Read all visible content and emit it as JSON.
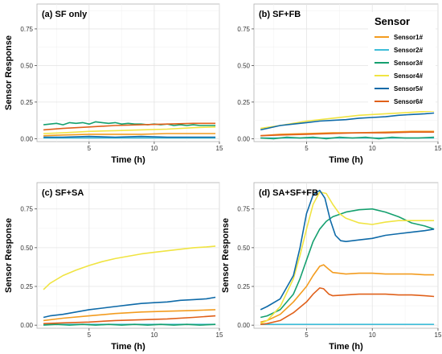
{
  "chart_data": {
    "type": "line",
    "legend": {
      "title": "Sensor",
      "entries": [
        {
          "name": "Sensor1#",
          "color": "#f39c1f"
        },
        {
          "name": "Sensor2#",
          "color": "#3fbdd8"
        },
        {
          "name": "Sensor3#",
          "color": "#15a06f"
        },
        {
          "name": "Sensor4#",
          "color": "#f0e442"
        },
        {
          "name": "Sensor5#",
          "color": "#0e6aa8"
        },
        {
          "name": "Sensor6#",
          "color": "#e0601a"
        }
      ]
    },
    "xlim": [
      1,
      15
    ],
    "ylim": [
      -0.02,
      0.92
    ],
    "xticks": [
      5,
      10,
      15
    ],
    "yticks": [
      0.0,
      0.25,
      0.5,
      0.75
    ],
    "ytick_labels": [
      "0.00",
      "0.25",
      "0.50",
      "0.75"
    ],
    "panels": [
      {
        "title": "(a) SF only",
        "xlabel": "Time (h)",
        "ylabel": "Sensor Response",
        "series": [
          {
            "name": "Sensor1#",
            "x": [
              1.5,
              3,
              5,
              7,
              9,
              11,
              13,
              14.7
            ],
            "y": [
              0.02,
              0.025,
              0.03,
              0.03,
              0.03,
              0.035,
              0.035,
              0.035
            ]
          },
          {
            "name": "Sensor2#",
            "x": [
              1.5,
              3,
              5,
              7,
              9,
              11,
              13,
              14.7
            ],
            "y": [
              0.005,
              0.005,
              0.005,
              0.005,
              0.005,
              0.005,
              0.005,
              0.005
            ]
          },
          {
            "name": "Sensor3#",
            "x": [
              1.5,
              2,
              2.5,
              3,
              3.5,
              4,
              4.5,
              5,
              5.5,
              6,
              6.5,
              7,
              7.5,
              8,
              8.5,
              9,
              9.5,
              10,
              10.5,
              11,
              11.5,
              12,
              12.5,
              13,
              13.5,
              14,
              14.7
            ],
            "y": [
              0.095,
              0.1,
              0.105,
              0.095,
              0.11,
              0.105,
              0.11,
              0.1,
              0.115,
              0.11,
              0.105,
              0.11,
              0.1,
              0.105,
              0.1,
              0.1,
              0.095,
              0.1,
              0.095,
              0.1,
              0.09,
              0.095,
              0.09,
              0.095,
              0.09,
              0.09,
              0.09
            ]
          },
          {
            "name": "Sensor4#",
            "x": [
              1.5,
              3,
              5,
              7,
              9,
              11,
              13,
              14.7
            ],
            "y": [
              0.035,
              0.04,
              0.05,
              0.055,
              0.06,
              0.065,
              0.075,
              0.08
            ]
          },
          {
            "name": "Sensor5#",
            "x": [
              1.5,
              3,
              5,
              7,
              9,
              11,
              13,
              14.7
            ],
            "y": [
              0.01,
              0.01,
              0.015,
              0.01,
              0.015,
              0.01,
              0.01,
              0.01
            ]
          },
          {
            "name": "Sensor6#",
            "x": [
              1.5,
              3,
              5,
              7,
              9,
              11,
              13,
              14.7
            ],
            "y": [
              0.06,
              0.07,
              0.08,
              0.09,
              0.095,
              0.1,
              0.105,
              0.105
            ]
          }
        ]
      },
      {
        "title": "(b) SF+FB",
        "xlabel": "Time (h)",
        "ylabel": "",
        "series": [
          {
            "name": "Sensor1#",
            "x": [
              1.5,
              3,
              5,
              7,
              9,
              11,
              13,
              14.7
            ],
            "y": [
              0.02,
              0.03,
              0.035,
              0.04,
              0.04,
              0.045,
              0.05,
              0.05
            ]
          },
          {
            "name": "Sensor2#",
            "x": [
              1.5,
              3,
              5,
              7,
              9,
              11,
              13,
              14.7
            ],
            "y": [
              0.005,
              0.005,
              0.005,
              0.005,
              0.005,
              0.005,
              0.005,
              0.005
            ]
          },
          {
            "name": "Sensor3#",
            "x": [
              1.5,
              2.5,
              3.5,
              4.5,
              5.5,
              6.5,
              7.5,
              8.5,
              9.5,
              10.5,
              11.5,
              12.5,
              13.5,
              14.7
            ],
            "y": [
              0.005,
              0.0,
              0.01,
              0.005,
              0.01,
              0.0,
              0.01,
              0.005,
              0.01,
              0.0,
              0.01,
              0.005,
              0.005,
              0.01
            ]
          },
          {
            "name": "Sensor4#",
            "x": [
              1.5,
              3,
              5,
              7,
              9,
              11,
              13,
              14.7
            ],
            "y": [
              0.07,
              0.09,
              0.12,
              0.14,
              0.16,
              0.17,
              0.18,
              0.19
            ]
          },
          {
            "name": "Sensor5#",
            "x": [
              1.5,
              2,
              3,
              4,
              5,
              6,
              7,
              8,
              9,
              10,
              11,
              12,
              13,
              14,
              14.7
            ],
            "y": [
              0.06,
              0.07,
              0.09,
              0.1,
              0.11,
              0.12,
              0.125,
              0.13,
              0.14,
              0.145,
              0.15,
              0.16,
              0.165,
              0.17,
              0.175
            ]
          },
          {
            "name": "Sensor6#",
            "x": [
              1.5,
              3,
              5,
              7,
              9,
              11,
              13,
              14.7
            ],
            "y": [
              0.02,
              0.025,
              0.03,
              0.035,
              0.04,
              0.04,
              0.045,
              0.045
            ]
          }
        ]
      },
      {
        "title": "(c) SF+SA",
        "xlabel": "Time (h)",
        "ylabel": "Sensor Response",
        "series": [
          {
            "name": "Sensor1#",
            "x": [
              1.5,
              3,
              5,
              7,
              9,
              11,
              13,
              14.7
            ],
            "y": [
              0.03,
              0.045,
              0.06,
              0.075,
              0.085,
              0.09,
              0.095,
              0.1
            ]
          },
          {
            "name": "Sensor2#",
            "x": [
              1.5,
              3,
              5,
              7,
              9,
              11,
              13,
              14.7
            ],
            "y": [
              0.005,
              0.005,
              0.005,
              0.005,
              0.005,
              0.005,
              0.005,
              0.005
            ]
          },
          {
            "name": "Sensor3#",
            "x": [
              1.5,
              2.5,
              3.5,
              4.5,
              5.5,
              6.5,
              7.5,
              8.5,
              9.5,
              10.5,
              11.5,
              12.5,
              13.5,
              14.7
            ],
            "y": [
              0.0,
              0.005,
              0.0,
              0.005,
              0.0,
              0.005,
              0.0,
              0.005,
              0.0,
              0.005,
              0.0,
              0.005,
              0.0,
              0.005
            ]
          },
          {
            "name": "Sensor4#",
            "x": [
              1.5,
              2,
              3,
              4,
              5,
              6,
              7,
              8,
              9,
              10,
              11,
              12,
              13,
              14,
              14.7
            ],
            "y": [
              0.23,
              0.27,
              0.32,
              0.355,
              0.385,
              0.41,
              0.43,
              0.445,
              0.46,
              0.47,
              0.48,
              0.49,
              0.5,
              0.505,
              0.51
            ]
          },
          {
            "name": "Sensor5#",
            "x": [
              1.5,
              2,
              3,
              4,
              5,
              6,
              7,
              8,
              9,
              10,
              11,
              12,
              13,
              14,
              14.7
            ],
            "y": [
              0.05,
              0.06,
              0.07,
              0.085,
              0.1,
              0.11,
              0.12,
              0.13,
              0.14,
              0.145,
              0.15,
              0.16,
              0.165,
              0.17,
              0.18
            ]
          },
          {
            "name": "Sensor6#",
            "x": [
              1.5,
              3,
              5,
              7,
              9,
              11,
              13,
              14.7
            ],
            "y": [
              0.01,
              0.015,
              0.02,
              0.03,
              0.035,
              0.04,
              0.05,
              0.06
            ]
          }
        ]
      },
      {
        "title": "(d) SA+SF+FB",
        "xlabel": "Time (h)",
        "ylabel": "Sensor Response",
        "series": [
          {
            "name": "Sensor1#",
            "x": [
              1.5,
              2,
              3,
              4,
              5,
              5.5,
              6,
              6.3,
              6.7,
              7,
              8,
              9,
              10,
              11,
              12,
              13,
              14,
              14.7
            ],
            "y": [
              0.02,
              0.03,
              0.07,
              0.15,
              0.25,
              0.32,
              0.38,
              0.39,
              0.36,
              0.34,
              0.33,
              0.335,
              0.335,
              0.33,
              0.33,
              0.33,
              0.325,
              0.325
            ]
          },
          {
            "name": "Sensor2#",
            "x": [
              1.5,
              3,
              5,
              7,
              9,
              11,
              13,
              14.7
            ],
            "y": [
              0.005,
              0.005,
              0.005,
              0.005,
              0.005,
              0.005,
              0.005,
              0.005
            ]
          },
          {
            "name": "Sensor3#",
            "x": [
              1.5,
              2,
              3,
              4,
              4.5,
              5,
              5.5,
              6,
              6.5,
              7,
              8,
              9,
              10,
              11,
              12,
              13,
              14,
              14.7
            ],
            "y": [
              0.05,
              0.06,
              0.1,
              0.2,
              0.3,
              0.42,
              0.54,
              0.62,
              0.67,
              0.7,
              0.73,
              0.745,
              0.75,
              0.73,
              0.7,
              0.66,
              0.64,
              0.62
            ]
          },
          {
            "name": "Sensor4#",
            "x": [
              1.5,
              2,
              3,
              4,
              4.5,
              5,
              5.5,
              6,
              6.5,
              7,
              7.5,
              8,
              9,
              10,
              11,
              12,
              13,
              14,
              14.7
            ],
            "y": [
              0.01,
              0.03,
              0.12,
              0.3,
              0.45,
              0.62,
              0.78,
              0.86,
              0.85,
              0.78,
              0.72,
              0.69,
              0.66,
              0.65,
              0.665,
              0.675,
              0.675,
              0.675,
              0.675
            ]
          },
          {
            "name": "Sensor5#",
            "x": [
              1.5,
              2,
              3,
              4,
              4.5,
              5,
              5.5,
              6,
              6.4,
              6.8,
              7.2,
              7.6,
              8,
              9,
              10,
              11,
              12,
              13,
              14,
              14.7
            ],
            "y": [
              0.1,
              0.12,
              0.17,
              0.32,
              0.5,
              0.72,
              0.84,
              0.87,
              0.82,
              0.68,
              0.58,
              0.545,
              0.54,
              0.55,
              0.56,
              0.58,
              0.59,
              0.6,
              0.61,
              0.62
            ]
          },
          {
            "name": "Sensor6#",
            "x": [
              1.5,
              2,
              3,
              4,
              5,
              5.5,
              6,
              6.3,
              6.7,
              7,
              8,
              9,
              10,
              11,
              12,
              13,
              14,
              14.7
            ],
            "y": [
              0.005,
              0.01,
              0.03,
              0.08,
              0.15,
              0.2,
              0.24,
              0.235,
              0.2,
              0.19,
              0.195,
              0.2,
              0.2,
              0.2,
              0.195,
              0.195,
              0.19,
              0.185
            ]
          }
        ]
      }
    ]
  }
}
